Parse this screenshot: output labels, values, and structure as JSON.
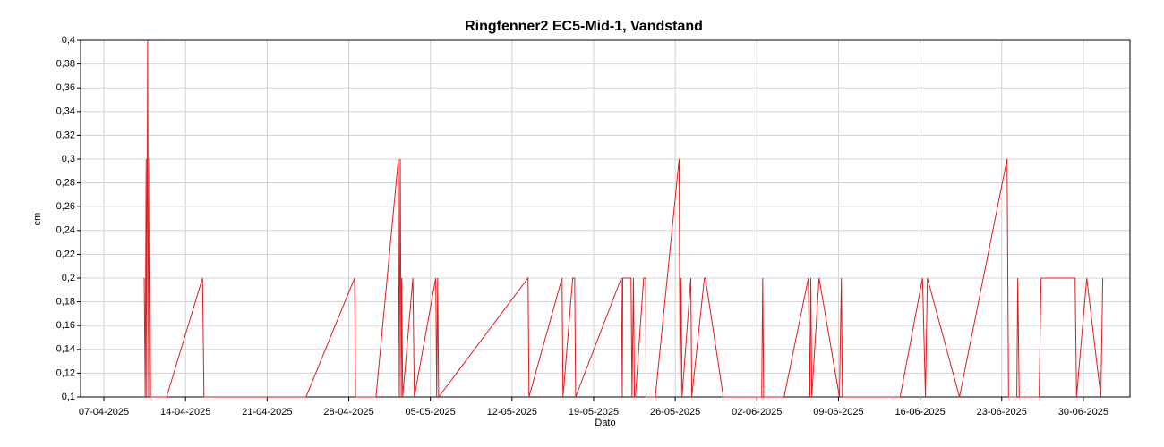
{
  "chart_data": {
    "type": "line",
    "title": "Ringfenner2 EC5-Mid-1, Vandstand",
    "x_label": "Dato",
    "y_label": "cm",
    "xlim": [
      "2025-04-05",
      "2025-07-04"
    ],
    "xticks": [
      {
        "value": "2025-04-07",
        "label": "07-04-2025"
      },
      {
        "value": "2025-04-14",
        "label": "14-04-2025"
      },
      {
        "value": "2025-04-21",
        "label": "21-04-2025"
      },
      {
        "value": "2025-04-28",
        "label": "28-04-2025"
      },
      {
        "value": "2025-05-05",
        "label": "05-05-2025"
      },
      {
        "value": "2025-05-12",
        "label": "12-05-2025"
      },
      {
        "value": "2025-05-19",
        "label": "19-05-2025"
      },
      {
        "value": "2025-05-26",
        "label": "26-05-2025"
      },
      {
        "value": "2025-06-02",
        "label": "02-06-2025"
      },
      {
        "value": "2025-06-09",
        "label": "09-06-2025"
      },
      {
        "value": "2025-06-16",
        "label": "16-06-2025"
      },
      {
        "value": "2025-06-23",
        "label": "23-06-2025"
      },
      {
        "value": "2025-06-30",
        "label": "30-06-2025"
      }
    ],
    "ylim": [
      0.1,
      0.4
    ],
    "yticks": [
      {
        "value": 0.1,
        "label": "0,1"
      },
      {
        "value": 0.12,
        "label": "0,12"
      },
      {
        "value": 0.14,
        "label": "0,14"
      },
      {
        "value": 0.16,
        "label": "0,16"
      },
      {
        "value": 0.18,
        "label": "0,18"
      },
      {
        "value": 0.2,
        "label": "0,2"
      },
      {
        "value": 0.22,
        "label": "0,22"
      },
      {
        "value": 0.24,
        "label": "0,24"
      },
      {
        "value": 0.26,
        "label": "0,26"
      },
      {
        "value": 0.28,
        "label": "0,28"
      },
      {
        "value": 0.3,
        "label": "0,3"
      },
      {
        "value": 0.32,
        "label": "0,32"
      },
      {
        "value": 0.34,
        "label": "0,34"
      },
      {
        "value": 0.36,
        "label": "0,36"
      },
      {
        "value": 0.38,
        "label": "0,38"
      },
      {
        "value": 0.4,
        "label": "0,4"
      }
    ],
    "grid": true,
    "color": "#e31a1c",
    "x": [
      "2025-04-10T11:00",
      "2025-04-10T13:00",
      "2025-04-10T15:00",
      "2025-04-10T16:00",
      "2025-04-10T18:00",
      "2025-04-10T20:00",
      "2025-04-10T22:00",
      "2025-04-11T00:00",
      "2025-04-12T09:00",
      "2025-04-15T11:00",
      "2025-04-15T14:00",
      "2025-04-24T08:00",
      "2025-04-28T12:00",
      "2025-04-28T14:00",
      "2025-04-30T08:00",
      "2025-05-02T06:00",
      "2025-05-02T08:00",
      "2025-05-02T10:00",
      "2025-05-02T12:00",
      "2025-05-02T13:00",
      "2025-05-02T15:00",
      "2025-05-03T12:00",
      "2025-05-03T15:00",
      "2025-05-05T11:00",
      "2025-05-05T13:00",
      "2025-05-05T15:00",
      "2025-05-05T17:00",
      "2025-05-13T09:00",
      "2025-05-13T11:00",
      "2025-05-16T07:00",
      "2025-05-16T09:00",
      "2025-05-17T05:00",
      "2025-05-17T09:00",
      "2025-05-17T11:00",
      "2025-05-21T09:00",
      "2025-05-21T11:00",
      "2025-05-21T12:00",
      "2025-05-22T05:00",
      "2025-05-22T07:00",
      "2025-05-22T10:00",
      "2025-05-22T12:00",
      "2025-05-22T14:00",
      "2025-05-23T07:00",
      "2025-05-23T11:00",
      "2025-05-23T12:00",
      "2025-05-24T07:00",
      "2025-05-26T08:00",
      "2025-05-26T10:00",
      "2025-05-26T12:00",
      "2025-05-26T14:00",
      "2025-05-27T08:00",
      "2025-05-27T10:00",
      "2025-05-28T12:00",
      "2025-05-28T14:00",
      "2025-05-30T03:00",
      "2025-06-02T10:00",
      "2025-06-02T12:00",
      "2025-06-02T14:00",
      "2025-06-04T08:00",
      "2025-06-06T10:00",
      "2025-06-06T13:00",
      "2025-06-06T15:00",
      "2025-06-06T17:00",
      "2025-06-07T08:00",
      "2025-06-09T02:00",
      "2025-06-09T06:00",
      "2025-06-09T08:00",
      "2025-06-14T07:00",
      "2025-06-16T05:00",
      "2025-06-16T11:00",
      "2025-06-16T15:00",
      "2025-06-19T09:00",
      "2025-06-23T11:00",
      "2025-06-23T14:00",
      "2025-06-24T07:00",
      "2025-06-24T09:00",
      "2025-06-24T12:00",
      "2025-06-26T05:00",
      "2025-06-26T09:00",
      "2025-06-29T07:00",
      "2025-06-29T10:00",
      "2025-06-30T07:00",
      "2025-07-01T12:00",
      "2025-07-01T16:00"
    ],
    "values": [
      0.2,
      0.1,
      0.3,
      0.1,
      0.4,
      0.1,
      0.3,
      0.1,
      0.1,
      0.2,
      0.1,
      0.1,
      0.2,
      0.1,
      0.1,
      0.3,
      0.1,
      0.3,
      0.1,
      0.2,
      0.1,
      0.2,
      0.1,
      0.2,
      0.1,
      0.2,
      0.1,
      0.2,
      0.1,
      0.2,
      0.1,
      0.2,
      0.2,
      0.1,
      0.2,
      0.1,
      0.2,
      0.2,
      0.1,
      0.2,
      0.1,
      0.1,
      0.2,
      0.2,
      0.1,
      0.1,
      0.3,
      0.1,
      0.2,
      0.1,
      0.2,
      0.1,
      0.2,
      0.2,
      0.1,
      0.1,
      0.2,
      0.1,
      0.1,
      0.2,
      0.1,
      0.2,
      0.1,
      0.2,
      0.1,
      0.2,
      0.1,
      0.1,
      0.2,
      0.1,
      0.2,
      0.1,
      0.3,
      0.1,
      0.1,
      0.2,
      0.1,
      0.1,
      0.2,
      0.2,
      0.1,
      0.2,
      0.1,
      0.2
    ]
  }
}
